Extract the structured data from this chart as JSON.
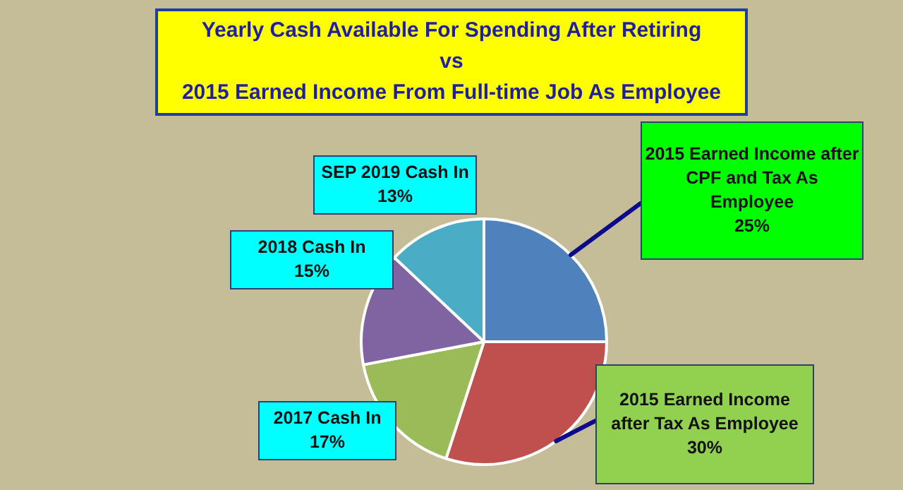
{
  "chart_data": {
    "type": "pie",
    "title": "Yearly Cash Available For Spending After Retiring\nvs\n2015 Earned Income From Full-time Job As Employee",
    "categories": [
      "2015 Earned Income after CPF and Tax As Employee",
      "2015 Earned Income after Tax As Employee",
      "2017 Cash In",
      "2018 Cash In",
      "SEP 2019 Cash In"
    ],
    "values": [
      25,
      30,
      17,
      15,
      13
    ],
    "colors": [
      "#4f81bd",
      "#c0504d",
      "#9bbb59",
      "#8064a2",
      "#4bacc6"
    ],
    "value_labels": [
      "25%",
      "30%",
      "17%",
      "15%",
      "13%"
    ],
    "legend": false
  }
}
